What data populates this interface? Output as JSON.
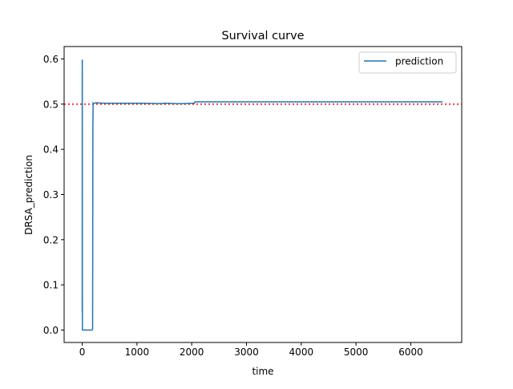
{
  "chart_data": {
    "type": "line",
    "title": "Survival curve",
    "xlabel": "time",
    "ylabel": "DRSA_prediction",
    "xlim": [
      -330,
      6930
    ],
    "ylim": [
      -0.0275,
      0.6275
    ],
    "xticks": [
      0,
      1000,
      2000,
      3000,
      4000,
      5000,
      6000
    ],
    "xtick_labels": [
      "0",
      "1000",
      "2000",
      "3000",
      "4000",
      "5000",
      "6000"
    ],
    "yticks": [
      0.0,
      0.1,
      0.2,
      0.3,
      0.4,
      0.5,
      0.6
    ],
    "ytick_labels": [
      "0.0",
      "0.1",
      "0.2",
      "0.3",
      "0.4",
      "0.5",
      "0.6"
    ],
    "grid": false,
    "legend_position": "top-right",
    "series": [
      {
        "name": "prediction",
        "color": "#1f77b4",
        "x": [
          0,
          1,
          2,
          3,
          4,
          5,
          6,
          8,
          10,
          20,
          50,
          100,
          150,
          180,
          190,
          195,
          200,
          205,
          250,
          400,
          600,
          800,
          1000,
          1200,
          1400,
          1500,
          1600,
          1700,
          1800,
          2000,
          2050,
          2060,
          2100,
          2500,
          3000,
          4000,
          5000,
          6000,
          6580
        ],
        "y": [
          0.04,
          0.597,
          0.597,
          0.1,
          0.0,
          0.0,
          0.0,
          0.0,
          0.0,
          0.0,
          0.0,
          0.0,
          0.0,
          0.0,
          0.002,
          0.45,
          0.502,
          0.501,
          0.503,
          0.502,
          0.502,
          0.502,
          0.502,
          0.502,
          0.501,
          0.502,
          0.502,
          0.501,
          0.501,
          0.502,
          0.502,
          0.505,
          0.505,
          0.505,
          0.505,
          0.505,
          0.505,
          0.505,
          0.505
        ]
      }
    ],
    "reference_line": {
      "y": 0.5,
      "color": "#ff0000",
      "style": "dotted"
    }
  }
}
